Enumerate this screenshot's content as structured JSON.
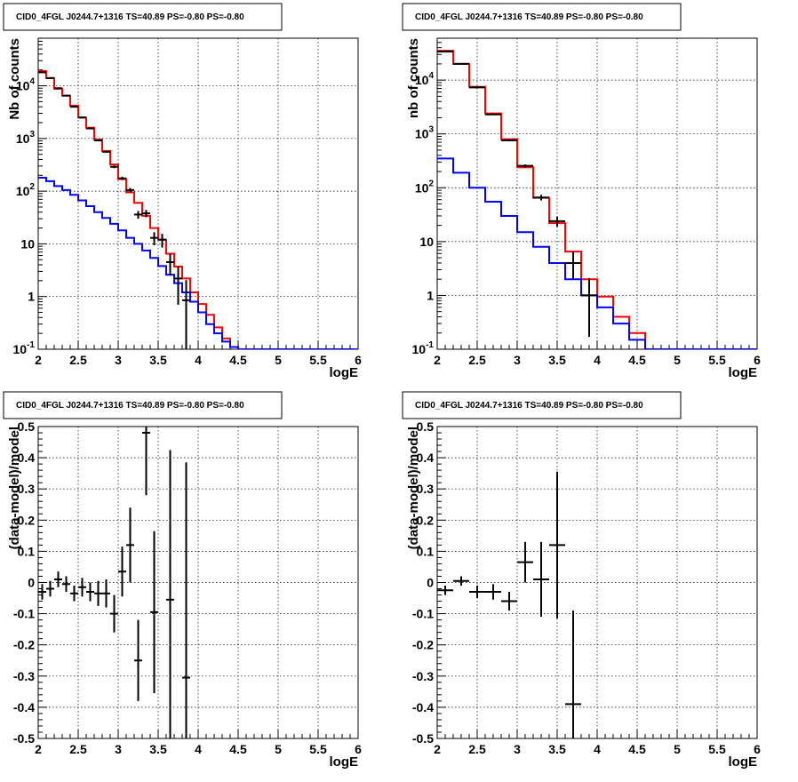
{
  "chart_data": [
    {
      "type": "line",
      "title": "CID0_4FGL J0244.7+1316 TS=40.89 PS=-0.80 PS=-0.80",
      "xlabel": "logE",
      "ylabel": "Nb of counts",
      "xscale": "linear",
      "yscale": "log",
      "xlim": [
        2,
        6
      ],
      "ylim": [
        0.1,
        80000
      ],
      "grid": true,
      "x_ticks": [
        "2",
        "2.5",
        "3",
        "3.5",
        "4",
        "4.5",
        "5",
        "5.5",
        "6"
      ],
      "y_ticks": [
        "10^-1",
        "1",
        "10",
        "10^2",
        "10^3",
        "10^4"
      ],
      "bin_edges": [
        2.0,
        2.1,
        2.2,
        2.3,
        2.4,
        2.5,
        2.6,
        2.7,
        2.8,
        2.9,
        3.0,
        3.1,
        3.2,
        3.3,
        3.4,
        3.5,
        3.6,
        3.7,
        3.8,
        3.9,
        4.0,
        4.1,
        4.2,
        4.3,
        4.4,
        4.5,
        4.6,
        4.7,
        4.8,
        4.9,
        5.0,
        5.1,
        5.2,
        5.3,
        5.4,
        5.5,
        5.6,
        5.7,
        5.8,
        5.9,
        6.0
      ],
      "series": [
        {
          "color": "#ff0000",
          "style": "histogram",
          "values": [
            19000,
            14000,
            8800,
            6500,
            4200,
            2500,
            1600,
            950,
            580,
            320,
            170,
            95,
            60,
            34,
            20,
            12,
            6.5,
            3.7,
            2.2,
            1.2,
            0.72,
            0.45,
            0.26,
            0.16,
            0.11,
            0.1,
            0.1,
            0.1,
            0.1,
            0.1,
            0.1,
            0.1,
            0.1,
            0.1,
            0.1,
            0.1,
            0.1,
            0.1,
            0.1,
            0.1
          ]
        },
        {
          "color": "#0000ff",
          "style": "histogram",
          "values": [
            180,
            155,
            125,
            105,
            85,
            67,
            52,
            40,
            31,
            24,
            18,
            13,
            10,
            7.5,
            5.4,
            3.8,
            2.6,
            1.8,
            1.2,
            0.8,
            0.5,
            0.3,
            0.2,
            0.14,
            0.11,
            0.1,
            0.1,
            0.1,
            0.1,
            0.1,
            0.1,
            0.1,
            0.1,
            0.1,
            0.1,
            0.1,
            0.1,
            0.1,
            0.1,
            0.1
          ]
        },
        {
          "color": "#000000",
          "style": "points",
          "x": [
            2.05,
            2.15,
            2.25,
            2.35,
            2.45,
            2.55,
            2.65,
            2.75,
            2.85,
            2.95,
            3.05,
            3.15,
            3.25,
            3.35,
            3.45,
            3.55,
            3.65,
            3.75,
            3.85
          ],
          "y": [
            18000,
            14000,
            9000,
            6500,
            4000,
            2500,
            1550,
            920,
            560,
            290,
            175,
            105,
            36,
            38,
            13,
            12,
            4.5,
            2.2,
            0.85
          ],
          "y_err_low": [
            135,
            118,
            95,
            80,
            63,
            50,
            39,
            30,
            24,
            17,
            13,
            10,
            6,
            6,
            3.6,
            3.5,
            2,
            1.5,
            0.84
          ],
          "y_err_high": [
            135,
            118,
            95,
            80,
            63,
            50,
            39,
            30,
            24,
            17,
            13,
            10,
            6,
            6,
            3.6,
            3.5,
            2,
            1.5,
            1.2
          ],
          "x_err": 0.05
        }
      ]
    },
    {
      "type": "line",
      "title": "CID0_4FGL J0244.7+1316 TS=40.89 PS=-0.80 PS=-0.80",
      "xlabel": "logE",
      "ylabel": "nb of counts",
      "xscale": "linear",
      "yscale": "log",
      "xlim": [
        2,
        6
      ],
      "ylim": [
        0.1,
        60000
      ],
      "grid": true,
      "x_ticks": [
        "2",
        "2.5",
        "3",
        "3.5",
        "4",
        "4.5",
        "5",
        "5.5",
        "6"
      ],
      "y_ticks": [
        "10^-1",
        "1",
        "10",
        "10^2",
        "10^3",
        "10^4"
      ],
      "bin_edges": [
        2.0,
        2.2,
        2.4,
        2.6,
        2.8,
        3.0,
        3.2,
        3.4,
        3.6,
        3.8,
        4.0,
        4.2,
        4.4,
        4.6,
        4.8,
        5.0,
        5.2,
        5.4,
        5.6,
        5.8,
        6.0
      ],
      "series": [
        {
          "color": "#ff0000",
          "style": "histogram",
          "values": [
            35000,
            20000,
            7500,
            2400,
            800,
            240,
            65,
            22,
            6.5,
            2.0,
            0.95,
            0.4,
            0.2,
            0.1,
            0.1,
            0.1,
            0.1,
            0.1,
            0.1,
            0.1
          ]
        },
        {
          "color": "#0000ff",
          "style": "histogram",
          "values": [
            350,
            190,
            100,
            55,
            30,
            15,
            8,
            4.0,
            2.0,
            1.0,
            0.6,
            0.3,
            0.15,
            0.1,
            0.1,
            0.1,
            0.1,
            0.1,
            0.1,
            0.1
          ]
        },
        {
          "color": "#000000",
          "style": "points",
          "x": [
            2.1,
            2.3,
            2.5,
            2.7,
            2.9,
            3.1,
            3.3,
            3.5,
            3.7,
            3.9
          ],
          "y": [
            34000,
            20000,
            7300,
            2300,
            760,
            255,
            66,
            24,
            4.0,
            1.0
          ],
          "y_err_low": [
            185,
            141,
            85,
            48,
            28,
            16,
            8,
            5,
            2,
            0.83
          ],
          "y_err_high": [
            185,
            141,
            85,
            48,
            28,
            16,
            8,
            5,
            2.5,
            1.1
          ],
          "x_err": 0.1
        }
      ]
    },
    {
      "type": "scatter",
      "title": "CID0_4FGL J0244.7+1316 TS=40.89 PS=-0.80 PS=-0.80",
      "xlabel": "logE",
      "ylabel": "(data-model)/model",
      "xscale": "linear",
      "yscale": "linear",
      "xlim": [
        2,
        6
      ],
      "ylim": [
        -0.5,
        0.5
      ],
      "grid": true,
      "x_ticks": [
        "2",
        "2.5",
        "3",
        "3.5",
        "4",
        "4.5",
        "5",
        "5.5",
        "6"
      ],
      "y_ticks": [
        "-0.5",
        "-0.4",
        "-0.3",
        "-0.2",
        "-0.1",
        "0",
        "0.1",
        "0.2",
        "0.3",
        "0.4",
        "0.5"
      ],
      "series": [
        {
          "color": "#000000",
          "style": "points",
          "x": [
            2.05,
            2.15,
            2.25,
            2.35,
            2.45,
            2.55,
            2.65,
            2.75,
            2.85,
            2.95,
            3.05,
            3.15,
            3.25,
            3.35,
            3.45,
            3.65,
            3.85
          ],
          "y": [
            -0.03,
            -0.02,
            0.01,
            -0.005,
            -0.035,
            -0.015,
            -0.03,
            -0.035,
            -0.035,
            -0.1,
            0.035,
            0.12,
            -0.25,
            0.48,
            -0.095,
            -0.055,
            -0.305
          ],
          "y_err": [
            0.025,
            0.025,
            0.025,
            0.025,
            0.025,
            0.03,
            0.03,
            0.04,
            0.045,
            0.06,
            0.08,
            0.12,
            0.13,
            0.2,
            0.26,
            0.48,
            0.69
          ],
          "x_err": 0.05
        }
      ]
    },
    {
      "type": "scatter",
      "title": "CID0_4FGL J0244.7+1316 TS=40.89 PS=-0.80 PS=-0.80",
      "xlabel": "logE",
      "ylabel": "(data-model)/model",
      "xscale": "linear",
      "yscale": "linear",
      "xlim": [
        2,
        6
      ],
      "ylim": [
        -0.5,
        0.5
      ],
      "grid": true,
      "x_ticks": [
        "2",
        "2.5",
        "3",
        "3.5",
        "4",
        "4.5",
        "5",
        "5.5",
        "6"
      ],
      "y_ticks": [
        "-0.5",
        "-0.4",
        "-0.3",
        "-0.2",
        "-0.1",
        "0",
        "0.1",
        "0.2",
        "0.3",
        "0.4",
        "0.5"
      ],
      "series": [
        {
          "color": "#000000",
          "style": "points",
          "x": [
            2.1,
            2.3,
            2.5,
            2.7,
            2.9,
            3.1,
            3.3,
            3.5,
            3.7
          ],
          "y": [
            -0.025,
            0.005,
            -0.03,
            -0.03,
            -0.06,
            0.065,
            0.01,
            0.12,
            -0.39
          ],
          "y_err": [
            0.015,
            0.015,
            0.02,
            0.025,
            0.03,
            0.065,
            0.12,
            0.235,
            0.3
          ],
          "x_err": 0.1
        }
      ]
    }
  ]
}
